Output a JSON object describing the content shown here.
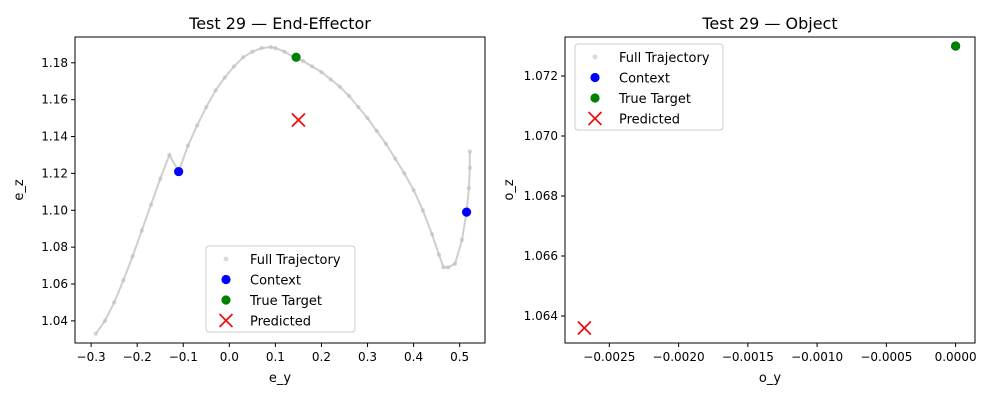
{
  "chart_data": [
    {
      "type": "scatter",
      "title": "Test 29 — End-Effector",
      "xlabel": "e_y",
      "ylabel": "e_z",
      "xlim": [
        -0.335,
        0.555
      ],
      "ylim": [
        1.028,
        1.194
      ],
      "xticks": [
        -0.3,
        -0.2,
        -0.1,
        0.0,
        0.1,
        0.2,
        0.3,
        0.4,
        0.5
      ],
      "xtick_labels": [
        "−0.3",
        "−0.2",
        "−0.1",
        "0.0",
        "0.1",
        "0.2",
        "0.3",
        "0.4",
        "0.5"
      ],
      "yticks": [
        1.04,
        1.06,
        1.08,
        1.1,
        1.12,
        1.14,
        1.16,
        1.18
      ],
      "ytick_labels": [
        "1.04",
        "1.06",
        "1.08",
        "1.10",
        "1.12",
        "1.14",
        "1.16",
        "1.18"
      ],
      "legend_position": "lower center",
      "series": [
        {
          "name": "Full Trajectory",
          "color": "#bbbbbb",
          "marker": "dot",
          "x": [
            -0.29,
            -0.27,
            -0.25,
            -0.23,
            -0.21,
            -0.19,
            -0.17,
            -0.15,
            -0.13,
            -0.11,
            -0.09,
            -0.07,
            -0.05,
            -0.03,
            -0.01,
            0.01,
            0.03,
            0.05,
            0.07,
            0.09,
            0.1,
            0.12,
            0.14,
            0.16,
            0.18,
            0.2,
            0.22,
            0.24,
            0.26,
            0.28,
            0.3,
            0.32,
            0.34,
            0.36,
            0.38,
            0.4,
            0.42,
            0.44,
            0.455,
            0.465,
            0.475,
            0.49,
            0.505,
            0.515,
            0.52,
            0.522,
            0.522
          ],
          "y": [
            1.033,
            1.04,
            1.05,
            1.062,
            1.075,
            1.089,
            1.103,
            1.117,
            1.13,
            1.121,
            1.135,
            1.146,
            1.156,
            1.165,
            1.172,
            1.178,
            1.183,
            1.186,
            1.188,
            1.1885,
            1.188,
            1.186,
            1.183,
            1.181,
            1.178,
            1.175,
            1.171,
            1.167,
            1.162,
            1.156,
            1.15,
            1.143,
            1.136,
            1.128,
            1.12,
            1.111,
            1.1,
            1.087,
            1.076,
            1.069,
            1.069,
            1.071,
            1.084,
            1.099,
            1.112,
            1.123,
            1.132
          ]
        },
        {
          "name": "Context",
          "color": "#0000ff",
          "marker": "circle",
          "x": [
            -0.11,
            0.515
          ],
          "y": [
            1.121,
            1.099
          ]
        },
        {
          "name": "True Target",
          "color": "#008000",
          "marker": "circle",
          "x": [
            0.145
          ],
          "y": [
            1.183
          ]
        },
        {
          "name": "Predicted",
          "color": "#ee1111",
          "marker": "x",
          "x": [
            0.15
          ],
          "y": [
            1.149
          ]
        }
      ]
    },
    {
      "type": "scatter",
      "title": "Test 29 — Object",
      "xlabel": "o_y",
      "ylabel": "o_z",
      "xlim": [
        -0.00282,
        0.00014
      ],
      "ylim": [
        1.0631,
        1.0733
      ],
      "xticks": [
        -0.0025,
        -0.002,
        -0.0015,
        -0.001,
        -0.0005,
        0.0
      ],
      "xtick_labels": [
        "−0.0025",
        "−0.0020",
        "−0.0015",
        "−0.0010",
        "−0.0005",
        "0.0000"
      ],
      "yticks": [
        1.064,
        1.066,
        1.068,
        1.07,
        1.072
      ],
      "ytick_labels": [
        "1.064",
        "1.066",
        "1.068",
        "1.070",
        "1.072"
      ],
      "legend_position": "upper left",
      "series": [
        {
          "name": "Full Trajectory",
          "color": "#bbbbbb",
          "marker": "dot",
          "x": [
            0.0
          ],
          "y": [
            1.073
          ]
        },
        {
          "name": "Context",
          "color": "#0000ff",
          "marker": "circle",
          "x": [
            0.0
          ],
          "y": [
            1.073
          ]
        },
        {
          "name": "True Target",
          "color": "#008000",
          "marker": "circle",
          "x": [
            0.0
          ],
          "y": [
            1.073
          ]
        },
        {
          "name": "Predicted",
          "color": "#ee1111",
          "marker": "x",
          "x": [
            -0.00268
          ],
          "y": [
            1.0636
          ]
        }
      ]
    }
  ]
}
